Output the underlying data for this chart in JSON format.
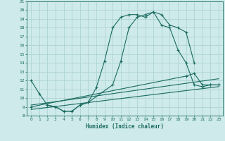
{
  "xlabel": "Humidex (Indice chaleur)",
  "bg_color": "#ceeaea",
  "grid_color": "#aed4d4",
  "line_color": "#1a6b60",
  "xlim": [
    -0.5,
    23.5
  ],
  "ylim": [
    8,
    21
  ],
  "xticks": [
    0,
    1,
    2,
    3,
    4,
    5,
    6,
    7,
    8,
    9,
    10,
    11,
    12,
    13,
    14,
    15,
    16,
    17,
    18,
    19,
    20,
    21,
    22,
    23
  ],
  "yticks": [
    8,
    9,
    10,
    11,
    12,
    13,
    14,
    15,
    16,
    17,
    18,
    19,
    20,
    21
  ],
  "line1_x": [
    0,
    1,
    2,
    3,
    4,
    5,
    6,
    7,
    8,
    9,
    10,
    11,
    12,
    13,
    14,
    15,
    16,
    17,
    18,
    19,
    20,
    21,
    22,
    23
  ],
  "line1_y": [
    12,
    10.5,
    9.2,
    9.0,
    8.5,
    8.5,
    9.2,
    9.5,
    11.2,
    14.2,
    18.0,
    19.2,
    19.5,
    19.5,
    19.2,
    19.8,
    18.3,
    18.0,
    15.5,
    14.0,
    11.5,
    11.3,
    11.5,
    11.5
  ],
  "line2_x": [
    2,
    3,
    4,
    5,
    6,
    7,
    10,
    11,
    12,
    13,
    14,
    15,
    16,
    17,
    18,
    19,
    20
  ],
  "line2_y": [
    9.2,
    9.0,
    8.5,
    8.5,
    9.2,
    9.5,
    11.5,
    14.2,
    18.0,
    19.2,
    19.5,
    19.8,
    19.5,
    18.3,
    18.0,
    17.5,
    14.0
  ],
  "line3_x": [
    0,
    19,
    20,
    21,
    22,
    23
  ],
  "line3_y": [
    9.0,
    12.5,
    12.8,
    11.5,
    11.5,
    11.5
  ],
  "line4_x": [
    0,
    23
  ],
  "line4_y": [
    8.7,
    11.3
  ],
  "line5_x": [
    0,
    23
  ],
  "line5_y": [
    9.2,
    12.2
  ]
}
